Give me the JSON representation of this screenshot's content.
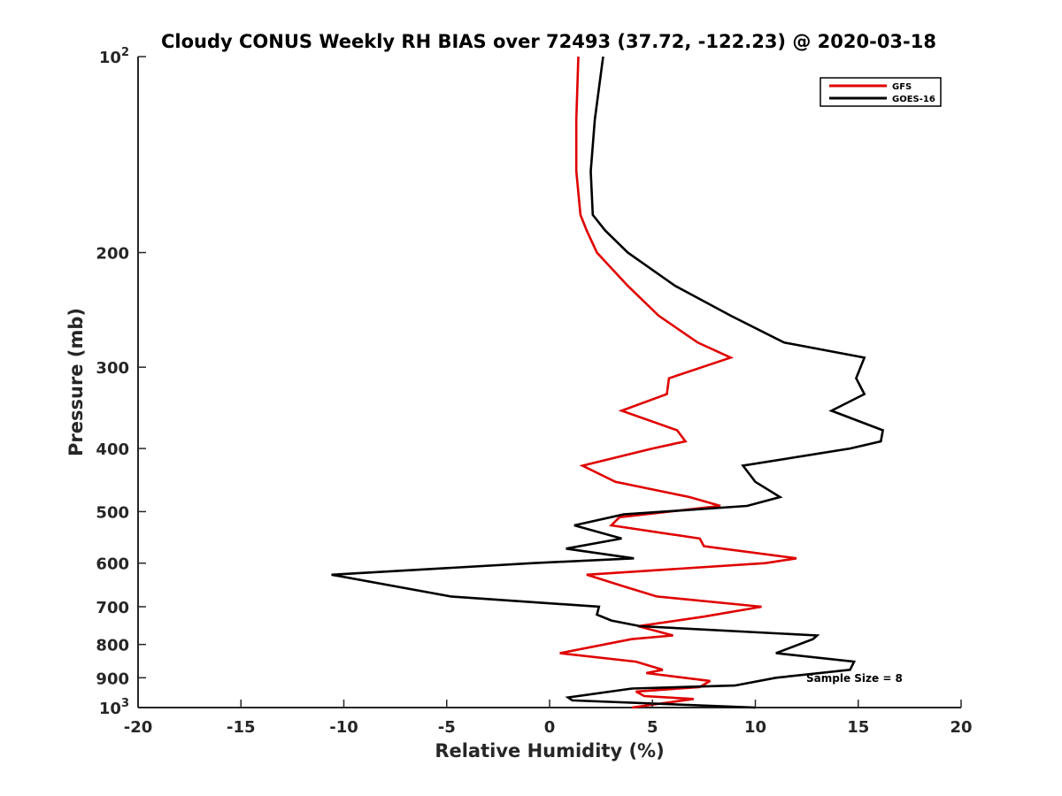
{
  "chart_data": {
    "type": "line",
    "title": "Cloudy CONUS Weekly RH BIAS over 72493 (37.72, -122.23) @ 2020-03-18",
    "xlabel": "Relative Humidity (%)",
    "ylabel": "Pressure (mb)",
    "xlim": [
      -20,
      20
    ],
    "ylim": [
      100,
      1000
    ],
    "y_scale": "log",
    "y_reversed": true,
    "grid": false,
    "x_ticks": [
      "-20",
      "-15",
      "-10",
      "-5",
      "0",
      "5",
      "10",
      "15",
      "20"
    ],
    "x_tick_values": [
      -20,
      -15,
      -10,
      -5,
      0,
      5,
      10,
      15,
      20
    ],
    "y_ticks": [
      {
        "value": 100,
        "base": "10",
        "exp": "2"
      },
      {
        "value": 200,
        "label": "200"
      },
      {
        "value": 300,
        "label": "300"
      },
      {
        "value": 400,
        "label": "400"
      },
      {
        "value": 500,
        "label": "500"
      },
      {
        "value": 600,
        "label": "600"
      },
      {
        "value": 700,
        "label": "700"
      },
      {
        "value": 800,
        "label": "800"
      },
      {
        "value": 900,
        "label": "900"
      },
      {
        "value": 1000,
        "base": "10",
        "exp": "3"
      }
    ],
    "legend_position": "top-right",
    "annotation": "Sample Size = 8",
    "series": [
      {
        "name": "GFS",
        "color": "#e00000",
        "points": [
          [
            1.4,
            100
          ],
          [
            1.3,
            125
          ],
          [
            1.3,
            150
          ],
          [
            1.5,
            175
          ],
          [
            1.8,
            185
          ],
          [
            2.3,
            200
          ],
          [
            3.8,
            225
          ],
          [
            5.3,
            250
          ],
          [
            7.2,
            275
          ],
          [
            8.8,
            290
          ],
          [
            5.8,
            312
          ],
          [
            5.7,
            330
          ],
          [
            3.5,
            350
          ],
          [
            6.2,
            375
          ],
          [
            6.6,
            390
          ],
          [
            5.0,
            400
          ],
          [
            1.6,
            425
          ],
          [
            3.2,
            450
          ],
          [
            6.8,
            475
          ],
          [
            8.3,
            490
          ],
          [
            3.4,
            510
          ],
          [
            3.0,
            525
          ],
          [
            7.3,
            550
          ],
          [
            7.5,
            565
          ],
          [
            12.0,
            590
          ],
          [
            10.5,
            600
          ],
          [
            1.8,
            625
          ],
          [
            3.5,
            650
          ],
          [
            5.2,
            675
          ],
          [
            10.3,
            700
          ],
          [
            7.5,
            725
          ],
          [
            4.3,
            750
          ],
          [
            6.0,
            775
          ],
          [
            4.0,
            785
          ],
          [
            0.5,
            825
          ],
          [
            4.2,
            850
          ],
          [
            5.5,
            875
          ],
          [
            4.7,
            885
          ],
          [
            7.8,
            910
          ],
          [
            7.3,
            930
          ],
          [
            4.2,
            945
          ],
          [
            4.6,
            960
          ],
          [
            7.0,
            970
          ],
          [
            4.0,
            1000
          ]
        ]
      },
      {
        "name": "GOES-16",
        "color": "#000000",
        "points": [
          [
            2.6,
            100
          ],
          [
            2.2,
            125
          ],
          [
            2.0,
            150
          ],
          [
            2.1,
            175
          ],
          [
            2.7,
            185
          ],
          [
            3.8,
            200
          ],
          [
            6.1,
            225
          ],
          [
            8.8,
            250
          ],
          [
            11.4,
            275
          ],
          [
            15.3,
            290
          ],
          [
            14.9,
            312
          ],
          [
            15.3,
            330
          ],
          [
            13.7,
            350
          ],
          [
            16.2,
            375
          ],
          [
            16.1,
            390
          ],
          [
            14.6,
            400
          ],
          [
            9.4,
            425
          ],
          [
            10.0,
            450
          ],
          [
            11.2,
            475
          ],
          [
            9.6,
            490
          ],
          [
            3.6,
            505
          ],
          [
            1.2,
            525
          ],
          [
            3.5,
            550
          ],
          [
            0.8,
            570
          ],
          [
            4.1,
            590
          ],
          [
            -0.8,
            600
          ],
          [
            -10.6,
            625
          ],
          [
            -4.8,
            675
          ],
          [
            2.4,
            700
          ],
          [
            2.3,
            720
          ],
          [
            3.0,
            735
          ],
          [
            4.4,
            750
          ],
          [
            13.0,
            775
          ],
          [
            12.8,
            785
          ],
          [
            11.0,
            825
          ],
          [
            14.8,
            850
          ],
          [
            14.6,
            875
          ],
          [
            11.0,
            900
          ],
          [
            9.0,
            925
          ],
          [
            4.0,
            935
          ],
          [
            0.9,
            965
          ],
          [
            1.1,
            975
          ],
          [
            10.0,
            1000
          ]
        ]
      }
    ]
  }
}
